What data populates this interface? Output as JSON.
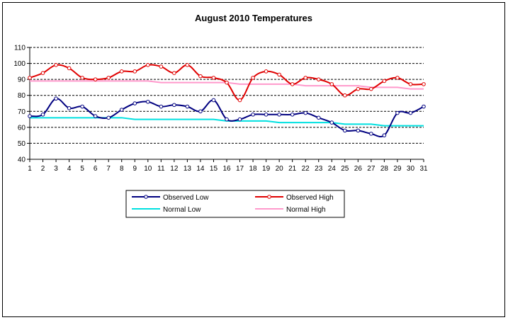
{
  "chart_data": {
    "type": "line",
    "title": "August 2010 Temperatures",
    "xlabel": "",
    "ylabel": "",
    "x": [
      1,
      2,
      3,
      4,
      5,
      6,
      7,
      8,
      9,
      10,
      11,
      12,
      13,
      14,
      15,
      16,
      17,
      18,
      19,
      20,
      21,
      22,
      23,
      24,
      25,
      26,
      27,
      28,
      29,
      30,
      31
    ],
    "ylim": [
      40,
      110
    ],
    "yticks": [
      40,
      50,
      60,
      70,
      80,
      90,
      100,
      110
    ],
    "grid": "horizontal dashed",
    "legend_position": "bottom-center",
    "series": [
      {
        "name": "Observed Low",
        "color": "#000080",
        "markers": true,
        "values": [
          67,
          68,
          78,
          72,
          73,
          67,
          66,
          71,
          75,
          76,
          73,
          74,
          73,
          70,
          77,
          65,
          65,
          68,
          68,
          68,
          68,
          69,
          66,
          63,
          58,
          58,
          56,
          55,
          69,
          69,
          73
        ]
      },
      {
        "name": "Observed High",
        "color": "#e00000",
        "markers": true,
        "values": [
          91,
          94,
          99,
          97,
          91,
          90,
          91,
          95,
          95,
          99,
          98,
          94,
          99,
          92,
          91,
          88,
          77,
          91,
          95,
          93,
          87,
          91,
          90,
          87,
          80,
          84,
          84,
          89,
          91,
          87,
          87
        ]
      },
      {
        "name": "Normal Low",
        "color": "#00e0e0",
        "markers": false,
        "values": [
          66,
          66,
          66,
          66,
          66,
          66,
          66,
          66,
          65,
          65,
          65,
          65,
          65,
          65,
          65,
          64,
          64,
          64,
          64,
          63,
          63,
          63,
          63,
          63,
          62,
          62,
          62,
          61,
          61,
          61,
          61
        ]
      },
      {
        "name": "Normal High",
        "color": "#ff99cc",
        "markers": false,
        "values": [
          89,
          89,
          89,
          89,
          89,
          89,
          89,
          89,
          89,
          89,
          88,
          88,
          88,
          88,
          88,
          88,
          87,
          87,
          87,
          87,
          87,
          86,
          86,
          86,
          86,
          86,
          85,
          85,
          85,
          84,
          84
        ]
      }
    ]
  }
}
